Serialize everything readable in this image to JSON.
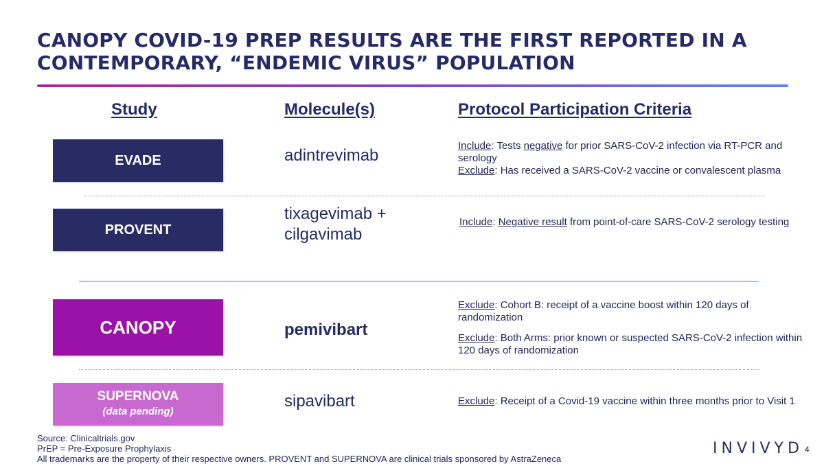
{
  "title": "CANOPY COVID-19 PREP RESULTS ARE THE FIRST REPORTED IN A CONTEMPORARY, “ENDEMIC VIRUS” POPULATION",
  "columns": {
    "study": "Study",
    "molecules": "Molecule(s)",
    "criteria": "Protocol Participation Criteria"
  },
  "rows": [
    {
      "study": "EVADE",
      "molecule": "adintrevimab",
      "criteria": {
        "include_label": "Include",
        "include_pre": ": Tests ",
        "include_key": "negative",
        "include_post": " for prior SARS-CoV-2 infection via RT-PCR and serology",
        "exclude_label": "Exclude",
        "exclude_text": ": Has received a SARS-CoV-2 vaccine or convalescent plasma"
      }
    },
    {
      "study": "PROVENT",
      "molecule_line1": "tixagevimab +",
      "molecule_line2": "cilgavimab",
      "criteria": {
        "include_label": "Include",
        "include_pre": ": ",
        "include_key": "Negative result",
        "include_post": " from point-of-care SARS-CoV-2 serology testing"
      }
    },
    {
      "study": "CANOPY",
      "molecule": "pemivibart",
      "criteria": {
        "exclude1_label": "Exclude",
        "exclude1_text": ": Cohort B: receipt of a vaccine boost within 120 days of randomization",
        "exclude2_label": "Exclude",
        "exclude2_text": ": Both Arms: prior known or suspected SARS-CoV-2 infection within 120 days of randomization"
      }
    },
    {
      "study": "SUPERNOVA",
      "study_note": "(data pending)",
      "molecule": "sipavibart",
      "criteria": {
        "exclude_label": "Exclude",
        "exclude_text": ": Receipt of a Covid-19 vaccine within three months prior to Visit 1"
      }
    }
  ],
  "footer": {
    "source": "Source: Clinicaltrials.gov",
    "prep": "PrEP = Pre-Exposure Prophylaxis",
    "trademarks": "All trademarks are the property of their respective owners.  PROVENT and SUPERNOVA are clinical trials sponsored by AstraZeneca"
  },
  "logo": "INVIVYD",
  "page_number": "4",
  "colors": {
    "navy": "#292b65",
    "magenta": "#9a12a8",
    "pink": "#c869cf",
    "divider_blue": "#7fd0ef"
  }
}
